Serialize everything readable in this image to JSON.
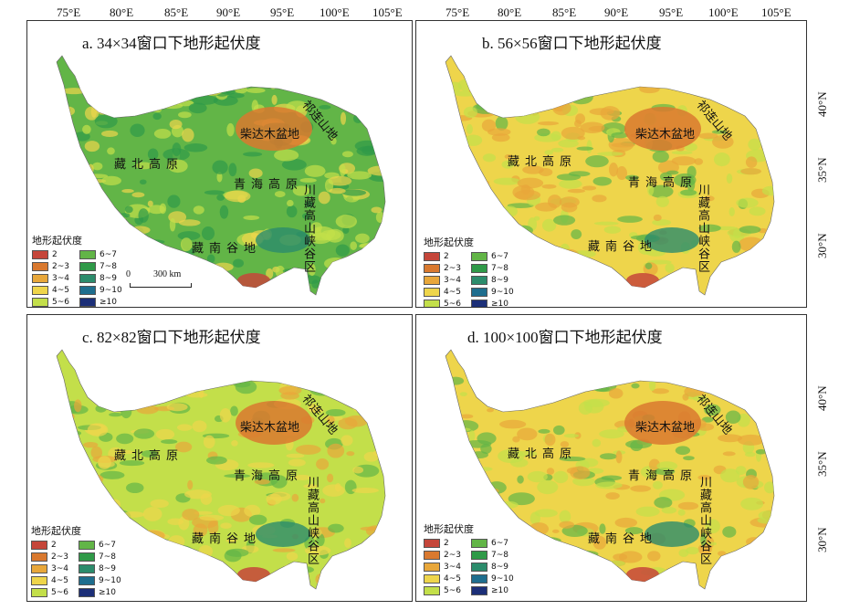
{
  "longitude_labels": [
    "75°E",
    "80°E",
    "85°E",
    "90°E",
    "95°E",
    "100°E",
    "105°E"
  ],
  "latitude_labels": [
    "40°N",
    "35°N",
    "30°N"
  ],
  "panels": [
    {
      "title": "a. 34×34窗口下地形起伏度"
    },
    {
      "title": "b. 56×56窗口下地形起伏度"
    },
    {
      "title": "c. 82×82窗口下地形起伏度"
    },
    {
      "title": "d. 100×100窗口下地形起伏度"
    }
  ],
  "place_names": {
    "qaidam": "柴达木盆地",
    "qilian": "祁连山地",
    "changtang": "藏北高原",
    "qinghai": "青海高原",
    "chuanzang": "川藏高山峡谷区",
    "zangnan": "藏南谷地"
  },
  "legend": {
    "title": "地形起伏度",
    "items": [
      {
        "label": "2",
        "color": "#c5463a"
      },
      {
        "label": "2~3",
        "color": "#d9792f"
      },
      {
        "label": "3~4",
        "color": "#e8a73a"
      },
      {
        "label": "4~5",
        "color": "#eed54b"
      },
      {
        "label": "5~6",
        "color": "#c3df4a"
      },
      {
        "label": "6~7",
        "color": "#62b547"
      },
      {
        "label": "7~8",
        "color": "#2f9a48"
      },
      {
        "label": "8~9",
        "color": "#2c8c6c"
      },
      {
        "label": "9~10",
        "color": "#1f6e8e"
      },
      {
        "label": "≥10",
        "color": "#1c2f78"
      }
    ]
  },
  "scalebar": {
    "zero": "0",
    "distance": "300 km"
  }
}
